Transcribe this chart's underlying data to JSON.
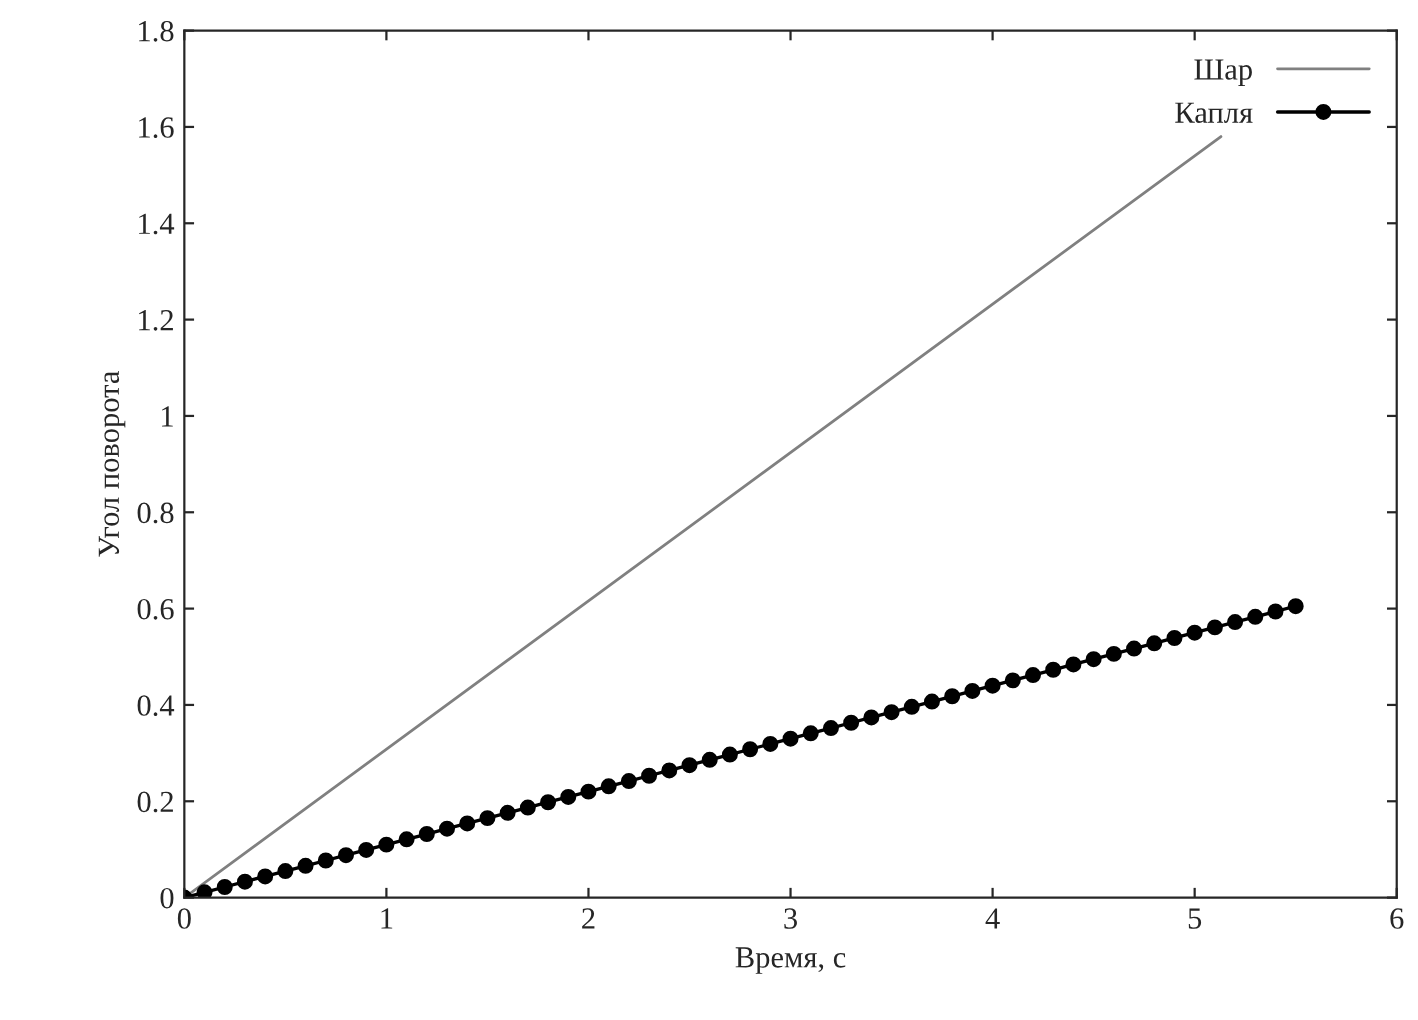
{
  "chart_data": {
    "type": "line",
    "xlabel": "Время, с",
    "ylabel": "Угол поворота",
    "xlim": [
      0,
      6
    ],
    "xticks": [
      0,
      1,
      2,
      3,
      4,
      5,
      6
    ],
    "ylim": [
      0,
      1.8
    ],
    "yticks": [
      0,
      0.2,
      0.4,
      0.6,
      0.8,
      1,
      1.2,
      1.4,
      1.6,
      1.8
    ],
    "legend": "top right",
    "grid": false,
    "line_style": "solid",
    "series": [
      {
        "name": "Шар",
        "color": "#808080",
        "marker": "none",
        "x": [
          0,
          5.13
        ],
        "values": [
          0,
          1.58
        ]
      },
      {
        "name": "Капля",
        "color": "#000000",
        "marker": "circle",
        "x": [
          0,
          0.1,
          0.2,
          0.3,
          0.4,
          0.5,
          0.6,
          0.7,
          0.8,
          0.9,
          1,
          1.1,
          1.2,
          1.3,
          1.4,
          1.5,
          1.6,
          1.7,
          1.8,
          1.9,
          2,
          2.1,
          2.2,
          2.3,
          2.4,
          2.5,
          2.6,
          2.7,
          2.8,
          2.9,
          3,
          3.1,
          3.2,
          3.3,
          3.4,
          3.5,
          3.6,
          3.7,
          3.8,
          3.9,
          4,
          4.1,
          4.2,
          4.3,
          4.4,
          4.5,
          4.6,
          4.7,
          4.8,
          4.9,
          5,
          5.1,
          5.2,
          5.3,
          5.4,
          5.5
        ],
        "values": [
          0,
          0.011,
          0.022,
          0.033,
          0.044,
          0.055,
          0.066,
          0.077,
          0.088,
          0.099,
          0.11,
          0.121,
          0.132,
          0.143,
          0.154,
          0.165,
          0.176,
          0.187,
          0.198,
          0.209,
          0.22,
          0.231,
          0.242,
          0.253,
          0.264,
          0.275,
          0.286,
          0.297,
          0.308,
          0.319,
          0.33,
          0.341,
          0.352,
          0.363,
          0.374,
          0.385,
          0.396,
          0.407,
          0.418,
          0.429,
          0.44,
          0.451,
          0.462,
          0.473,
          0.484,
          0.495,
          0.506,
          0.517,
          0.528,
          0.539,
          0.55,
          0.561,
          0.572,
          0.583,
          0.594,
          0.605
        ]
      }
    ]
  }
}
